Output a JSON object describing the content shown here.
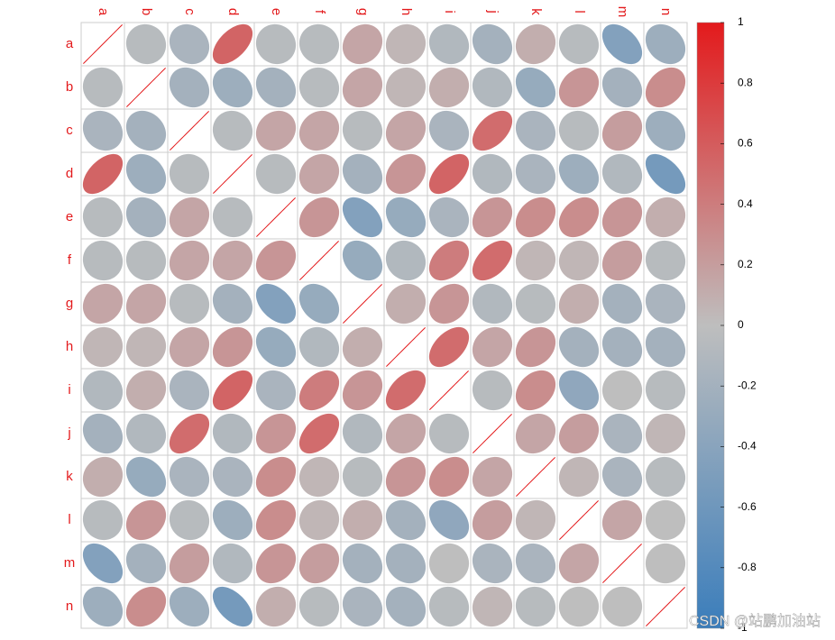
{
  "chart_data": {
    "type": "correlation",
    "categories": [
      "a",
      "b",
      "c",
      "d",
      "e",
      "f",
      "g",
      "h",
      "i",
      "j",
      "k",
      "l",
      "m",
      "n"
    ],
    "values": [
      [
        1,
        -0.05,
        -0.15,
        0.55,
        -0.05,
        -0.05,
        0.15,
        0.05,
        -0.1,
        -0.2,
        0.1,
        -0.05,
        -0.45,
        -0.25
      ],
      [
        -0.05,
        1,
        -0.2,
        -0.25,
        -0.2,
        -0.05,
        0.15,
        0.05,
        0.1,
        -0.1,
        -0.3,
        0.25,
        -0.2,
        0.3
      ],
      [
        -0.15,
        -0.2,
        1,
        -0.05,
        0.15,
        0.15,
        -0.05,
        0.15,
        -0.15,
        0.5,
        -0.15,
        -0.05,
        0.2,
        -0.25
      ],
      [
        0.55,
        -0.25,
        -0.05,
        1,
        -0.05,
        0.15,
        -0.2,
        0.25,
        0.55,
        -0.1,
        -0.15,
        -0.25,
        -0.1,
        -0.55
      ],
      [
        -0.05,
        -0.2,
        0.15,
        -0.05,
        1,
        0.25,
        -0.45,
        -0.3,
        -0.15,
        0.25,
        0.3,
        0.3,
        0.25,
        0.1
      ],
      [
        -0.05,
        -0.05,
        0.15,
        0.15,
        0.25,
        1,
        -0.3,
        -0.1,
        0.4,
        0.5,
        0.05,
        0.05,
        0.2,
        -0.05
      ],
      [
        0.15,
        0.15,
        -0.05,
        -0.2,
        -0.45,
        -0.3,
        1,
        0.1,
        0.25,
        -0.1,
        -0.05,
        0.1,
        -0.2,
        -0.15
      ],
      [
        0.05,
        0.05,
        0.15,
        0.25,
        -0.3,
        -0.1,
        0.1,
        1,
        0.5,
        0.15,
        0.25,
        -0.2,
        -0.2,
        -0.2
      ],
      [
        -0.1,
        0.1,
        -0.15,
        0.55,
        -0.15,
        0.4,
        0.25,
        0.5,
        1,
        -0.05,
        0.3,
        -0.35,
        0,
        -0.05
      ],
      [
        -0.2,
        -0.1,
        0.5,
        -0.1,
        0.25,
        0.5,
        -0.1,
        0.15,
        -0.05,
        1,
        0.15,
        0.2,
        -0.15,
        0.05
      ],
      [
        0.1,
        -0.3,
        -0.15,
        -0.15,
        0.3,
        0.05,
        -0.05,
        0.25,
        0.3,
        0.15,
        1,
        0.05,
        -0.15,
        -0.05
      ],
      [
        -0.05,
        0.25,
        -0.05,
        -0.25,
        0.3,
        0.05,
        0.1,
        -0.2,
        -0.35,
        0.2,
        0.05,
        1,
        0.15,
        0
      ],
      [
        -0.45,
        -0.2,
        0.2,
        -0.1,
        0.25,
        0.2,
        -0.2,
        -0.2,
        0,
        -0.15,
        -0.15,
        0.15,
        1,
        0
      ],
      [
        -0.25,
        0.3,
        -0.25,
        -0.55,
        0.1,
        -0.05,
        -0.15,
        -0.2,
        -0.05,
        0.05,
        -0.05,
        0,
        0,
        1
      ]
    ],
    "colors": [
      "#3a7dbb",
      "#bebebe",
      "#e31a1c"
    ],
    "clim": [
      -1,
      1
    ],
    "cticks": [
      1,
      0.8,
      0.6,
      0.4,
      0.2,
      0,
      -0.2,
      -0.4,
      -0.6,
      -0.8,
      -1
    ]
  },
  "watermark": "CSDN @站鹏加油站"
}
